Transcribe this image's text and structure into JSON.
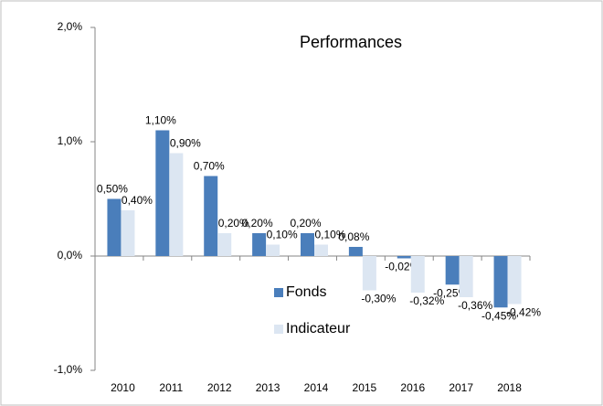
{
  "chart_data": {
    "type": "bar",
    "title": "Performances",
    "categories": [
      "2010",
      "2011",
      "2012",
      "2013",
      "2014",
      "2015",
      "2016",
      "2017",
      "2018"
    ],
    "series": [
      {
        "name": "Fonds",
        "color": "#4a7ebb",
        "values": [
          0.5,
          1.1,
          0.7,
          0.2,
          0.2,
          0.08,
          -0.02,
          -0.25,
          -0.45
        ],
        "value_labels": [
          "0,50%",
          "1,10%",
          "0,70%",
          "0,20%",
          "0,20%",
          "0,08%",
          "-0,02%",
          "-0,25%",
          "-0,45%"
        ]
      },
      {
        "name": "Indicateur",
        "color": "#dce6f2",
        "values": [
          0.4,
          0.9,
          0.2,
          0.1,
          0.1,
          -0.3,
          -0.32,
          -0.36,
          -0.42
        ],
        "value_labels": [
          "0,40%",
          "0,90%",
          "0,20%",
          "0,10%",
          "0,10%",
          "-0,30%",
          "-0,32%",
          "-0,36%",
          "-0,42%"
        ]
      }
    ],
    "ylim": [
      -1,
      2
    ],
    "yticks": [
      {
        "value": -1,
        "label": "-1,0%"
      },
      {
        "value": 0,
        "label": "0,0%"
      },
      {
        "value": 1,
        "label": "1,0%"
      },
      {
        "value": 2,
        "label": "2,0%"
      }
    ],
    "grid": false,
    "legend": "center"
  }
}
